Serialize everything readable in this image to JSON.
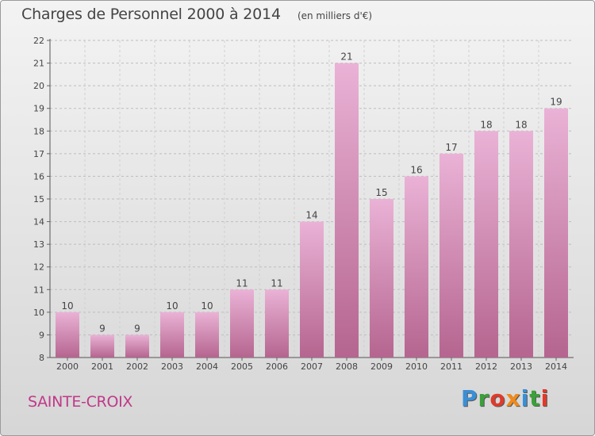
{
  "header": {
    "title": "Charges de Personnel 2000 à 2014",
    "subtitle": "(en milliers d'€)"
  },
  "footer": {
    "town": "SAINTE-CROIX",
    "brand": "Proxiti"
  },
  "colors": {
    "bar_light": "#eab2d6",
    "bar_dark": "#b5658f",
    "town_text": "#c0398a",
    "brand_letters": [
      "#3a8fd6",
      "#3aa03a",
      "#e03a2a",
      "#f08a1a",
      "#3a8fd6",
      "#3aa03a",
      "#e03a2a"
    ]
  },
  "chart_data": {
    "type": "bar",
    "title": "Charges de Personnel 2000 à 2014",
    "subtitle": "(en milliers d'€)",
    "categories": [
      "2000",
      "2001",
      "2002",
      "2003",
      "2004",
      "2005",
      "2006",
      "2007",
      "2008",
      "2009",
      "2010",
      "2011",
      "2012",
      "2013",
      "2014"
    ],
    "values": [
      10,
      9,
      9,
      10,
      10,
      11,
      11,
      14,
      21,
      15,
      16,
      17,
      18,
      18,
      19
    ],
    "value_labels": [
      "10",
      "9",
      "9",
      "10",
      "10",
      "11",
      "11",
      "14",
      "21",
      "15",
      "16",
      "17",
      "18",
      "18",
      "19"
    ],
    "ylim": [
      8,
      22
    ],
    "yticks": [
      8,
      9,
      10,
      11,
      12,
      13,
      14,
      15,
      16,
      17,
      18,
      19,
      20,
      21,
      22
    ],
    "xlabel": "",
    "ylabel": "",
    "grid": true,
    "legend": "none"
  }
}
